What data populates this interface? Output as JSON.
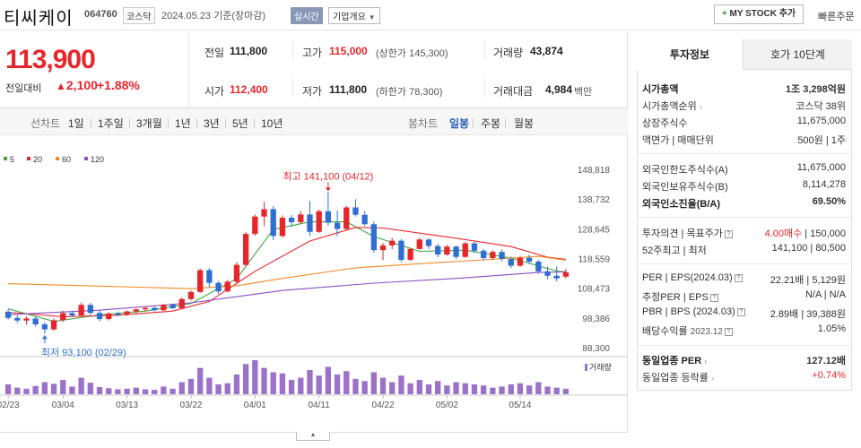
{
  "header": {
    "name": "티씨케이",
    "code": "064760",
    "market": "코스닥",
    "date": "2024.05.23 기준(장마감)",
    "realtime": "실시간",
    "overview": "기업개요",
    "mystock": "MY STOCK 추가",
    "quick": "빠른주문"
  },
  "price": {
    "current": "113,900",
    "change_label": "전일대비",
    "change": "2,100",
    "change_pct": "+1.88%"
  },
  "quote": {
    "prev_label": "전일",
    "prev": "111,800",
    "high_label": "고가",
    "high": "115,000",
    "upper": "(상한가 145,300)",
    "volume_label": "거래량",
    "volume": "43,874",
    "open_label": "시가",
    "open": "112,400",
    "low_label": "저가",
    "low": "111,800",
    "lower": "(하한가 78,300)",
    "amount_label": "거래대금",
    "amount": "4,984",
    "amount_unit": "백만"
  },
  "toolbar": {
    "line_label": "선차트",
    "periods": [
      "1일",
      "1주일",
      "3개월",
      "1년",
      "3년",
      "5년",
      "10년"
    ],
    "candle_label": "봉차트",
    "candles": [
      "일봉",
      "주봉",
      "월봉"
    ]
  },
  "chart_data": {
    "type": "candlestick",
    "legend": [
      "5",
      "20",
      "60",
      "120"
    ],
    "legend_colors": [
      "#3ea63e",
      "#e7262c",
      "#f08a24",
      "#8e4cc4"
    ],
    "y_ticks": [
      "148,818",
      "138,732",
      "128,645",
      "118,559",
      "108,473",
      "98,386",
      "88,300"
    ],
    "ylim": [
      88300,
      148818
    ],
    "x_ticks": [
      "02/23",
      "03/04",
      "03/13",
      "03/22",
      "04/01",
      "04/11",
      "04/22",
      "05/02",
      "05/14"
    ],
    "x_tick_index": [
      0,
      6,
      13,
      20,
      27,
      34,
      41,
      48,
      56
    ],
    "max_label": "최고 141,100 (04/12)",
    "max_index": 35,
    "max_value": 141100,
    "min_label": "최저 93,100 (02/29)",
    "min_index": 4,
    "min_value": 93100,
    "volume_label": "거래량",
    "candles": [
      [
        100500,
        101500,
        97800,
        98400
      ],
      [
        98400,
        99300,
        96700,
        97500
      ],
      [
        97500,
        99000,
        96100,
        98200
      ],
      [
        98200,
        98800,
        95400,
        96200
      ],
      [
        96200,
        96900,
        93100,
        94500
      ],
      [
        94500,
        98200,
        94000,
        97600
      ],
      [
        97600,
        100800,
        97000,
        100000
      ],
      [
        100000,
        100900,
        98600,
        99200
      ],
      [
        99200,
        103600,
        98800,
        102800
      ],
      [
        102800,
        103500,
        99300,
        100100
      ],
      [
        100100,
        101000,
        97200,
        98000
      ],
      [
        98000,
        100300,
        97500,
        99900
      ],
      [
        99900,
        100600,
        99000,
        99400
      ],
      [
        99400,
        100900,
        99100,
        100600
      ],
      [
        100600,
        101600,
        100000,
        101300
      ],
      [
        101300,
        102200,
        100600,
        101800
      ],
      [
        101800,
        102300,
        100600,
        101000
      ],
      [
        101000,
        103200,
        100700,
        102900
      ],
      [
        102900,
        103300,
        101300,
        101700
      ],
      [
        101700,
        105400,
        101300,
        104800
      ],
      [
        104800,
        107700,
        104300,
        107200
      ],
      [
        107200,
        115100,
        106800,
        114600
      ],
      [
        114600,
        115400,
        108900,
        110300
      ],
      [
        110300,
        110900,
        106600,
        107400
      ],
      [
        107400,
        111300,
        107000,
        110700
      ],
      [
        110700,
        117300,
        110200,
        116400
      ],
      [
        116400,
        127600,
        116000,
        126900
      ],
      [
        126900,
        133500,
        126300,
        132800
      ],
      [
        132800,
        137800,
        129600,
        135300
      ],
      [
        135300,
        136400,
        124800,
        126200
      ],
      [
        126200,
        133200,
        125700,
        132400
      ],
      [
        132400,
        133300,
        129300,
        130900
      ],
      [
        130900,
        134700,
        130300,
        133500
      ],
      [
        133500,
        138100,
        126100,
        127600
      ],
      [
        127600,
        135200,
        127200,
        134600
      ],
      [
        134600,
        141100,
        129700,
        130700
      ],
      [
        130700,
        134900,
        126200,
        128600
      ],
      [
        128600,
        136400,
        128200,
        135900
      ],
      [
        135900,
        138700,
        132800,
        133400
      ],
      [
        133400,
        134700,
        129500,
        130200
      ],
      [
        130200,
        131200,
        120500,
        121400
      ],
      [
        121400,
        123800,
        118000,
        123000
      ],
      [
        123000,
        125600,
        121700,
        124600
      ],
      [
        124600,
        125100,
        117300,
        118100
      ],
      [
        118100,
        122200,
        117800,
        121800
      ],
      [
        121800,
        125600,
        121500,
        125000
      ],
      [
        125000,
        125500,
        121800,
        122800
      ],
      [
        122800,
        123600,
        119000,
        119900
      ],
      [
        119900,
        123200,
        119500,
        122600
      ],
      [
        122600,
        123000,
        118300,
        119100
      ],
      [
        119100,
        124100,
        118800,
        123700
      ],
      [
        123700,
        124200,
        120400,
        121200
      ],
      [
        121200,
        121800,
        117900,
        118700
      ],
      [
        118700,
        121400,
        118100,
        120800
      ],
      [
        120800,
        121600,
        117600,
        118400
      ],
      [
        118400,
        119300,
        115300,
        116100
      ],
      [
        116100,
        119400,
        115700,
        118800
      ],
      [
        118800,
        119900,
        116700,
        117500
      ],
      [
        117500,
        118100,
        113400,
        114200
      ],
      [
        114200,
        115800,
        111600,
        112700
      ],
      [
        112700,
        115800,
        110800,
        111800
      ],
      [
        112400,
        115000,
        111800,
        113900
      ]
    ],
    "volume": [
      18,
      12,
      10,
      15,
      22,
      19,
      26,
      14,
      30,
      21,
      13,
      11,
      9,
      10,
      12,
      9,
      8,
      14,
      10,
      22,
      28,
      48,
      30,
      18,
      20,
      36,
      55,
      62,
      48,
      40,
      38,
      26,
      30,
      44,
      34,
      50,
      36,
      42,
      28,
      24,
      40,
      30,
      22,
      34,
      20,
      26,
      18,
      24,
      16,
      22,
      20,
      18,
      16,
      12,
      14,
      18,
      20,
      16,
      22,
      14,
      12,
      10
    ],
    "ma": {
      "ma5": [
        [
          0,
          101500
        ],
        [
          5,
          97200
        ],
        [
          10,
          99400
        ],
        [
          15,
          100700
        ],
        [
          20,
          103300
        ],
        [
          25,
          111700
        ],
        [
          29,
          128400
        ],
        [
          33,
          131000
        ],
        [
          37,
          131000
        ],
        [
          40,
          126000
        ],
        [
          45,
          121000
        ],
        [
          50,
          121400
        ],
        [
          55,
          118700
        ],
        [
          60,
          114300
        ],
        [
          61,
          114000
        ]
      ],
      "ma20": [
        [
          0,
          100300
        ],
        [
          6,
          98800
        ],
        [
          12,
          99300
        ],
        [
          18,
          100700
        ],
        [
          22,
          104000
        ],
        [
          27,
          114200
        ],
        [
          33,
          124500
        ],
        [
          38,
          129100
        ],
        [
          41,
          128900
        ],
        [
          48,
          125900
        ],
        [
          55,
          122600
        ],
        [
          59,
          119000
        ],
        [
          61,
          118300
        ]
      ],
      "ma60": [
        [
          0,
          110000
        ],
        [
          10,
          109200
        ],
        [
          20,
          108300
        ],
        [
          25,
          109300
        ],
        [
          30,
          111800
        ],
        [
          38,
          115400
        ],
        [
          45,
          116800
        ],
        [
          52,
          118100
        ],
        [
          58,
          119300
        ],
        [
          61,
          118000
        ]
      ],
      "ma120": [
        [
          0,
          99500
        ],
        [
          10,
          101000
        ],
        [
          20,
          103500
        ],
        [
          30,
          107700
        ],
        [
          40,
          110200
        ],
        [
          50,
          112000
        ],
        [
          58,
          113800
        ],
        [
          61,
          114000
        ]
      ]
    }
  },
  "side": {
    "tab_info": "투자정보",
    "tab_order": "호가 10단계",
    "market_cap_label": "시가총액",
    "market_cap": "1조 3,298억원",
    "cap_rank_label": "시가총액순위",
    "cap_rank": "코스닥 38위",
    "shares_label": "상장주식수",
    "shares": "11,675,000",
    "par_label": "액면가 | 매매단위",
    "par": "500원 | 1주",
    "foreign_limit_label": "외국인한도주식수(A)",
    "foreign_limit": "11,675,000",
    "foreign_hold_label": "외국인보유주식수(B)",
    "foreign_hold": "8,114,278",
    "foreign_ratio_label": "외국인소진율(B/A)",
    "foreign_ratio": "69.50%",
    "opinion_label": "투자의견 | 목표주가",
    "opinion": "4.00매수",
    "target": "150,000",
    "wk52_label": "52주최고 | 최저",
    "wk52": "141,100 | 80,500",
    "per_label": "PER | EPS(2024.03)",
    "per": "22.21배 | 5,129원",
    "est_label": "추정PER | EPS",
    "est": "N/A | N/A",
    "pbr_label": "PBR | BPS (2024.03)",
    "pbr": "2.89배 | 39,388원",
    "div_label": "배당수익률",
    "div_date": "2023.12",
    "div": "1.05%",
    "sector_per_label": "동일업종 PER",
    "sector_per": "127.12배",
    "sector_rate_label": "동일업종 등락률",
    "sector_rate": "+0.74%"
  }
}
